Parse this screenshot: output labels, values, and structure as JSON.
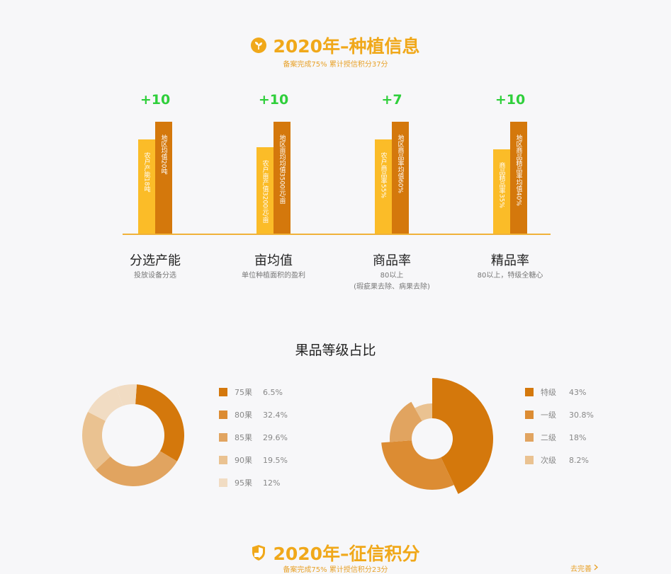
{
  "section1": {
    "title": "2020年–种植信息",
    "subtitle": "备案完成75% 累计授信积分37分",
    "icon": "leaf-icon"
  },
  "metrics": [
    {
      "bonus": "+10",
      "light_label": "农户产能18吨",
      "dark_label": "地区均值20吨",
      "light_height": 0.76,
      "dark_height": 0.9,
      "title": "分选产能",
      "desc": "投放设备分选",
      "desc2": ""
    },
    {
      "bonus": "+10",
      "light_label": "农户亩产值3200元/亩",
      "dark_label": "地区亩均均值3500元/亩",
      "light_height": 0.7,
      "dark_height": 0.9,
      "title": "亩均值",
      "desc": "单位种植面积的盈利",
      "desc2": ""
    },
    {
      "bonus": "+7",
      "light_label": "农户商品率55%",
      "dark_label": "地区商品率均值60%",
      "light_height": 0.76,
      "dark_height": 0.9,
      "title": "商品率",
      "desc": "80以上",
      "desc2": "(瑕疵果去除、病果去除)"
    },
    {
      "bonus": "+10",
      "light_label": "商品精品率35%",
      "dark_label": "地区商品精品率均值40%",
      "light_height": 0.68,
      "dark_height": 0.9,
      "title": "精品率",
      "desc": "80以上，特级全糖心",
      "desc2": ""
    }
  ],
  "grade_section": {
    "title": "果品等级占比"
  },
  "chart_data": [
    {
      "type": "pie",
      "variant": "donut",
      "categories": [
        "75果",
        "80果",
        "85果",
        "90果",
        "95果"
      ],
      "values": [
        6.5,
        32.4,
        29.6,
        19.5,
        12
      ],
      "labels": [
        "6.5%",
        "32.4%",
        "29.6%",
        "19.5%",
        "12%"
      ],
      "colors": [
        "#d4780c",
        "#dc8c33",
        "#e1a460",
        "#eac291",
        "#f1dcc3"
      ]
    },
    {
      "type": "pie",
      "variant": "rose",
      "categories": [
        "特级",
        "一级",
        "二级",
        "次级"
      ],
      "values": [
        43,
        30.8,
        18,
        8.2
      ],
      "labels": [
        "43%",
        "30.8%",
        "18%",
        "8.2%"
      ],
      "colors": [
        "#d4780c",
        "#dc8c33",
        "#e1a460",
        "#eac291"
      ]
    }
  ],
  "section2": {
    "title": "2020年–征信积分",
    "subtitle": "备案完成75% 累计授信积分23分",
    "icon": "shield-icon",
    "link": "去完善",
    "link_icon": "chevron-right-icon"
  }
}
